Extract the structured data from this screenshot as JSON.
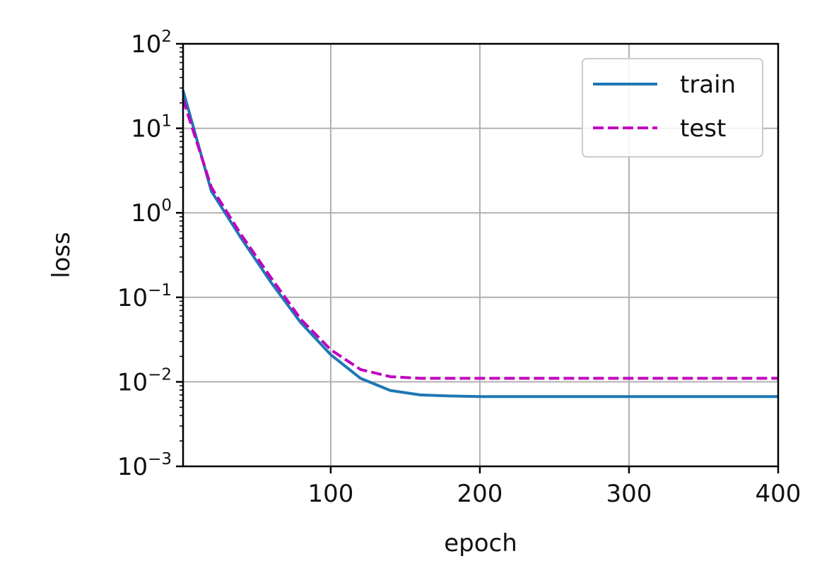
{
  "chart_data": {
    "type": "line",
    "xlabel": "epoch",
    "ylabel": "loss",
    "xlim": [
      1,
      400
    ],
    "ylim": [
      0.001,
      100
    ],
    "yscale": "log",
    "grid": true,
    "legend_position": "top-right",
    "x_ticks": [
      100,
      200,
      300,
      400
    ],
    "y_ticks": [
      {
        "base": "10",
        "exp": "−3",
        "value": 0.001
      },
      {
        "base": "10",
        "exp": "−2",
        "value": 0.01
      },
      {
        "base": "10",
        "exp": "−1",
        "value": 0.1
      },
      {
        "base": "10",
        "exp": "0",
        "value": 1
      },
      {
        "base": "10",
        "exp": "1",
        "value": 10
      },
      {
        "base": "10",
        "exp": "2",
        "value": 100
      }
    ],
    "series": [
      {
        "name": "train",
        "color": "#1f77b4",
        "dash": "solid",
        "x": [
          1,
          20,
          40,
          60,
          80,
          100,
          120,
          140,
          160,
          180,
          200,
          250,
          300,
          350,
          400
        ],
        "y": [
          28,
          1.8,
          0.5,
          0.15,
          0.05,
          0.021,
          0.011,
          0.0079,
          0.007,
          0.0068,
          0.0067,
          0.0067,
          0.0067,
          0.0067,
          0.0067
        ]
      },
      {
        "name": "test",
        "color": "#bf00bf",
        "dash": "dashed",
        "x": [
          1,
          20,
          40,
          60,
          80,
          100,
          120,
          140,
          160,
          180,
          200,
          250,
          300,
          350,
          400
        ],
        "y": [
          22,
          2.0,
          0.55,
          0.17,
          0.055,
          0.024,
          0.014,
          0.0115,
          0.011,
          0.011,
          0.011,
          0.011,
          0.011,
          0.011,
          0.011
        ]
      }
    ]
  }
}
